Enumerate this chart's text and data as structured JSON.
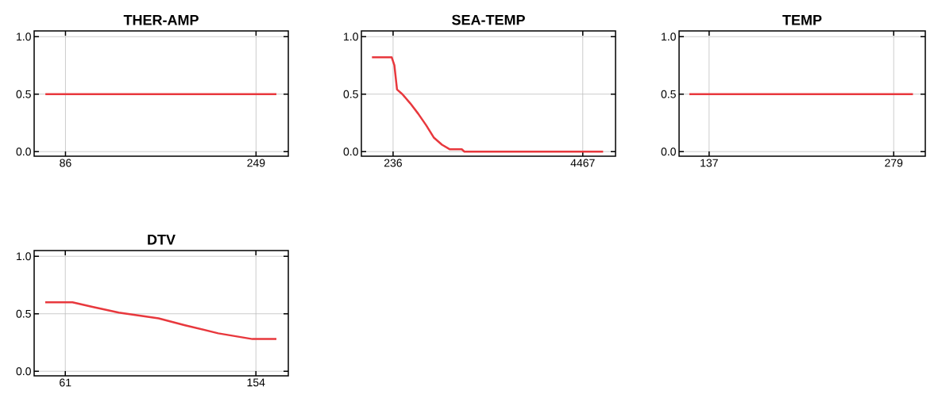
{
  "chart_data": [
    {
      "type": "line",
      "title": "THER-AMP",
      "x": [
        68.8,
        266.4
      ],
      "values": [
        0.5,
        0.5
      ],
      "color": "#e8383d",
      "xlim": [
        59.2,
        276.6
      ],
      "ylim": [
        -0.04,
        1.05
      ],
      "xticks": [
        86,
        249
      ],
      "yticks": [
        {
          "value": 0,
          "label": "0.0"
        },
        {
          "value": 0.5,
          "label": "0.5"
        },
        {
          "value": 1,
          "label": "1.0"
        }
      ],
      "grid": true
    },
    {
      "type": "line",
      "title": "SEA-TEMP",
      "x": [
        -235,
        206,
        265,
        324,
        442,
        619,
        796,
        973,
        1149,
        1326,
        1503,
        1768,
        1827,
        4921
      ],
      "values": [
        0.82,
        0.82,
        0.75,
        0.54,
        0.5,
        0.42,
        0.33,
        0.23,
        0.12,
        0.06,
        0.02,
        0.02,
        0.0,
        0.0
      ],
      "color": "#e8383d",
      "xlim": [
        -471,
        5198
      ],
      "ylim": [
        -0.04,
        1.05
      ],
      "xticks": [
        236,
        4467
      ],
      "yticks": [
        {
          "value": 0,
          "label": "0.0"
        },
        {
          "value": 0.5,
          "label": "0.5"
        },
        {
          "value": 1,
          "label": "1.0"
        }
      ],
      "grid": true
    },
    {
      "type": "line",
      "title": "TEMP",
      "x": [
        121.8,
        293.8
      ],
      "values": [
        0.5,
        0.5
      ],
      "color": "#e8383d",
      "xlim": [
        113.9,
        303.3
      ],
      "ylim": [
        -0.04,
        1.05
      ],
      "xticks": [
        137,
        279
      ],
      "yticks": [
        {
          "value": 0,
          "label": "0.0"
        },
        {
          "value": 0.5,
          "label": "0.5"
        },
        {
          "value": 1,
          "label": "1.0"
        }
      ],
      "grid": true
    },
    {
      "type": "line",
      "title": "DTV",
      "x": [
        51.2,
        64.5,
        74.2,
        87.1,
        106.5,
        119.4,
        135.6,
        152.3,
        164
      ],
      "values": [
        0.6,
        0.6,
        0.56,
        0.51,
        0.46,
        0.4,
        0.33,
        0.28,
        0.28
      ],
      "color": "#e8383d",
      "xlim": [
        45.8,
        169.8
      ],
      "ylim": [
        -0.04,
        1.05
      ],
      "xticks": [
        61,
        154
      ],
      "yticks": [
        {
          "value": 0,
          "label": "0.0"
        },
        {
          "value": 0.5,
          "label": "0.5"
        },
        {
          "value": 1,
          "label": "1.0"
        }
      ],
      "grid": true
    }
  ]
}
